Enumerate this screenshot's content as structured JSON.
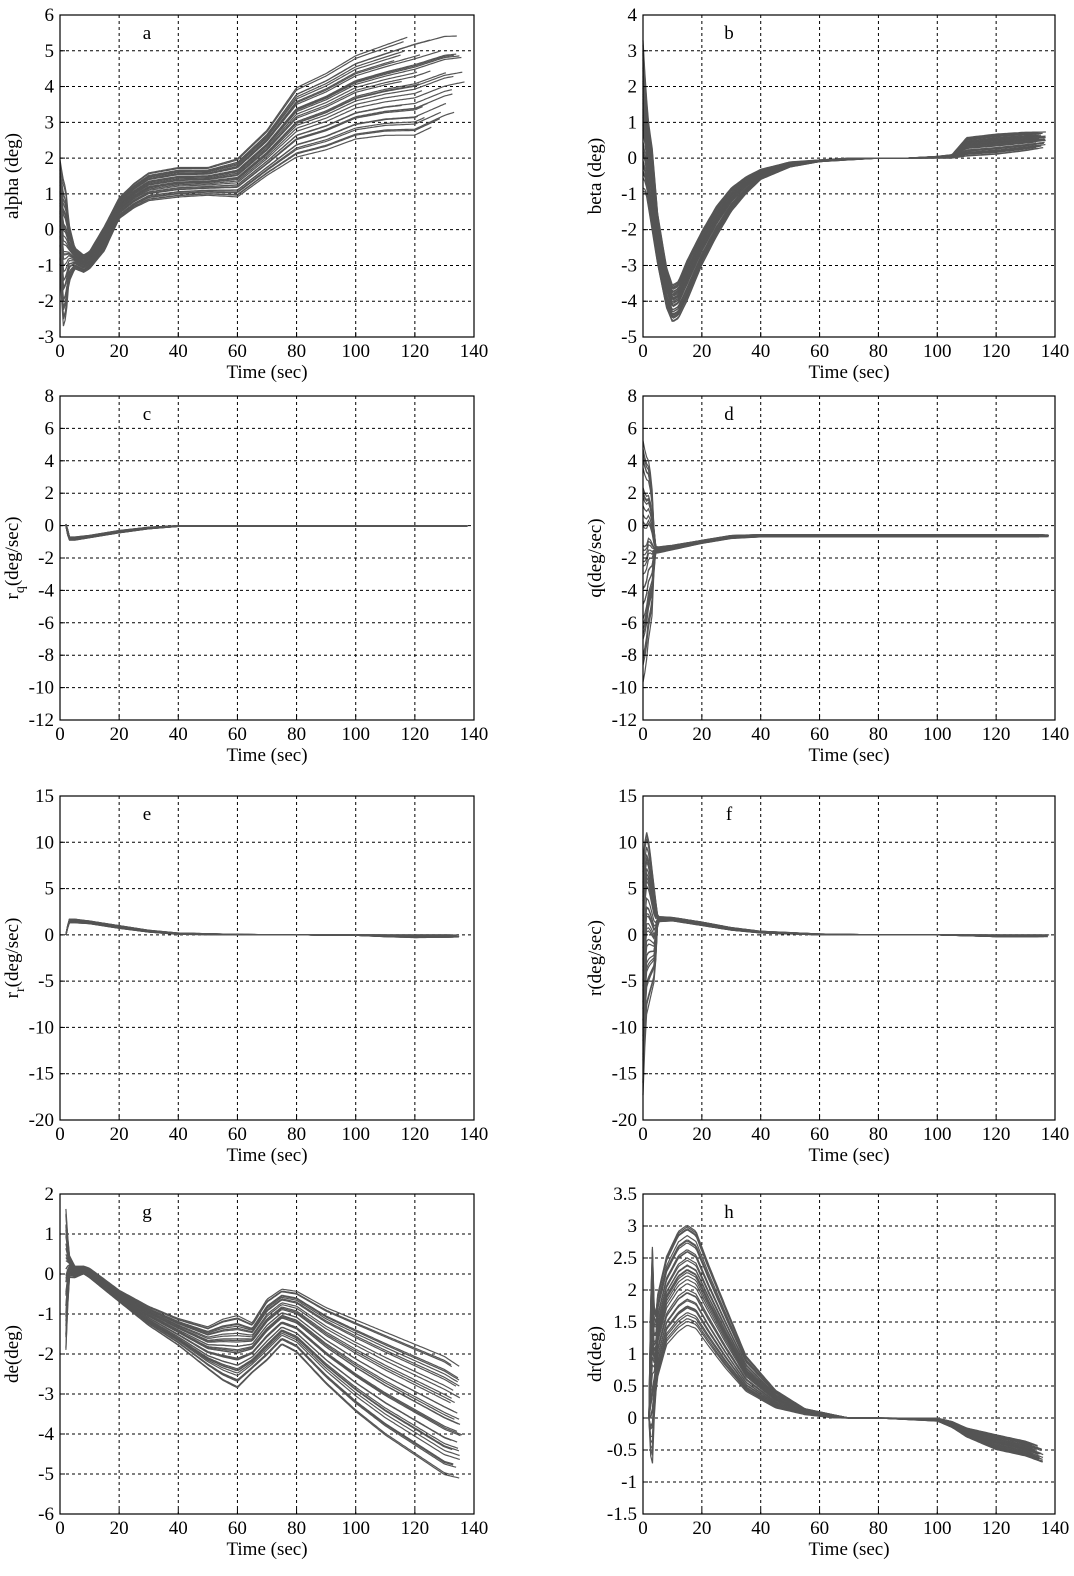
{
  "figure": {
    "layout": "4 rows x 2 columns",
    "line_color": "#555555",
    "grid": "dashed"
  },
  "chart_data": [
    {
      "panel": "a",
      "type": "line",
      "ylabel": "alpha (deg)",
      "xlabel": "Time (sec)",
      "xlim": [
        0,
        140
      ],
      "ylim": [
        -3,
        6
      ],
      "xticks": [
        "0",
        "20",
        "40",
        "60",
        "80",
        "100",
        "120",
        "140"
      ],
      "yticks": [
        "-3",
        "-2",
        "-1",
        "0",
        "1",
        "2",
        "3",
        "4",
        "5",
        "6"
      ],
      "envelope": {
        "x": [
          0,
          1,
          2,
          3,
          5,
          8,
          10,
          15,
          20,
          25,
          30,
          40,
          50,
          60,
          70,
          80,
          90,
          100,
          110,
          120,
          130,
          137
        ],
        "upper": [
          2.0,
          1.5,
          1.2,
          0.2,
          -0.5,
          -0.7,
          -0.6,
          0.1,
          0.9,
          1.3,
          1.6,
          1.75,
          1.75,
          2.0,
          2.8,
          4.0,
          4.4,
          4.9,
          5.2,
          5.5,
          5.7,
          5.7
        ],
        "lower": [
          -1.0,
          -2.8,
          -2.5,
          -1.5,
          -1.1,
          -1.2,
          -1.1,
          -0.6,
          0.3,
          0.6,
          0.8,
          0.9,
          0.95,
          0.9,
          1.5,
          2.0,
          2.2,
          2.5,
          2.6,
          2.6,
          3.0,
          3.2
        ]
      }
    },
    {
      "panel": "b",
      "type": "line",
      "ylabel": "beta (deg)",
      "xlabel": "Time (sec)",
      "xlim": [
        0,
        140
      ],
      "ylim": [
        -5,
        4
      ],
      "xticks": [
        "0",
        "20",
        "40",
        "60",
        "80",
        "100",
        "120",
        "140"
      ],
      "yticks": [
        "-5",
        "-4",
        "-3",
        "-2",
        "-1",
        "0",
        "1",
        "2",
        "3",
        "4"
      ],
      "envelope": {
        "x": [
          0,
          1,
          2,
          3,
          5,
          8,
          10,
          12,
          15,
          20,
          25,
          30,
          35,
          40,
          50,
          60,
          70,
          80,
          90,
          100,
          105,
          110,
          120,
          130,
          137
        ],
        "upper": [
          3.5,
          2.0,
          1.0,
          0.5,
          -1.5,
          -3.0,
          -3.5,
          -3.4,
          -2.8,
          -2.0,
          -1.3,
          -0.8,
          -0.5,
          -0.3,
          -0.1,
          -0.05,
          0.0,
          0.0,
          0.0,
          0.05,
          0.1,
          0.6,
          0.7,
          0.75,
          0.75
        ],
        "lower": [
          -1.0,
          -1.0,
          -1.5,
          -2.0,
          -3.0,
          -4.2,
          -4.6,
          -4.5,
          -4.0,
          -3.0,
          -2.2,
          -1.5,
          -1.0,
          -0.6,
          -0.25,
          -0.1,
          -0.05,
          0.0,
          0.0,
          0.0,
          0.0,
          0.05,
          0.1,
          0.2,
          0.3
        ]
      }
    },
    {
      "panel": "c",
      "type": "line",
      "ylabel": "r_q(deg/sec)",
      "xlabel": "Time (sec)",
      "xlim": [
        0,
        140
      ],
      "ylim": [
        -12,
        8
      ],
      "xticks": [
        "0",
        "20",
        "40",
        "60",
        "80",
        "100",
        "120",
        "140"
      ],
      "yticks": [
        "-12",
        "-10",
        "-8",
        "-6",
        "-4",
        "-2",
        "0",
        "2",
        "4",
        "6",
        "8"
      ],
      "envelope": {
        "x": [
          2,
          2.5,
          3,
          5,
          10,
          20,
          30,
          40,
          60,
          80,
          100,
          120,
          138
        ],
        "upper": [
          0.1,
          -0.1,
          -0.7,
          -0.7,
          -0.6,
          -0.3,
          -0.1,
          0.0,
          0.0,
          0.0,
          0.0,
          0.0,
          0.0
        ],
        "lower": [
          0.0,
          -0.5,
          -0.9,
          -0.9,
          -0.75,
          -0.45,
          -0.2,
          -0.05,
          -0.05,
          -0.05,
          -0.05,
          -0.05,
          -0.05
        ]
      }
    },
    {
      "panel": "d",
      "type": "line",
      "ylabel": "q(deg/sec)",
      "xlabel": "Time (sec)",
      "xlim": [
        0,
        140
      ],
      "ylim": [
        -12,
        8
      ],
      "xticks": [
        "0",
        "20",
        "40",
        "60",
        "80",
        "100",
        "120",
        "140"
      ],
      "yticks": [
        "-12",
        "-10",
        "-8",
        "-6",
        "-4",
        "-2",
        "0",
        "2",
        "4",
        "6",
        "8"
      ],
      "envelope": {
        "x": [
          0,
          1,
          2,
          3,
          4,
          5,
          10,
          20,
          30,
          40,
          60,
          80,
          100,
          120,
          138
        ],
        "upper": [
          6.0,
          5.0,
          4.5,
          3.0,
          -1.2,
          -1.3,
          -1.2,
          -0.9,
          -0.6,
          -0.55,
          -0.55,
          -0.55,
          -0.55,
          -0.55,
          -0.55
        ],
        "lower": [
          -10.0,
          -9.0,
          -7.0,
          -6.0,
          -1.7,
          -1.7,
          -1.5,
          -1.1,
          -0.8,
          -0.7,
          -0.7,
          -0.7,
          -0.7,
          -0.7,
          -0.7
        ]
      }
    },
    {
      "panel": "e",
      "type": "line",
      "ylabel": "r_r(deg/sec)",
      "xlabel": "Time (sec)",
      "xlim": [
        0,
        140
      ],
      "ylim": [
        -20,
        15
      ],
      "xticks": [
        "0",
        "20",
        "40",
        "60",
        "80",
        "100",
        "120",
        "140"
      ],
      "yticks": [
        "-20",
        "-15",
        "-10",
        "-5",
        "0",
        "5",
        "10",
        "15"
      ],
      "envelope": {
        "x": [
          2,
          3,
          5,
          10,
          20,
          30,
          40,
          60,
          80,
          100,
          110,
          120,
          135
        ],
        "upper": [
          0.0,
          1.7,
          1.7,
          1.5,
          1.0,
          0.5,
          0.2,
          0.05,
          0.0,
          0.0,
          0.0,
          0.0,
          0.0
        ],
        "lower": [
          0.0,
          1.3,
          1.3,
          1.2,
          0.7,
          0.3,
          0.05,
          0.0,
          0.0,
          -0.05,
          -0.2,
          -0.3,
          -0.25
        ]
      }
    },
    {
      "panel": "f",
      "type": "line",
      "ylabel": "r(deg/sec)",
      "xlabel": "Time (sec)",
      "xlim": [
        0,
        140
      ],
      "ylim": [
        -20,
        15
      ],
      "xticks": [
        "0",
        "20",
        "40",
        "60",
        "80",
        "100",
        "120",
        "140"
      ],
      "yticks": [
        "-20",
        "-15",
        "-10",
        "-5",
        "0",
        "5",
        "10",
        "15"
      ],
      "envelope": {
        "x": [
          0,
          1,
          2,
          3,
          4,
          5,
          10,
          20,
          30,
          40,
          60,
          80,
          100,
          110,
          120,
          138
        ],
        "upper": [
          9.0,
          12.5,
          11.0,
          8.0,
          5.0,
          2.0,
          1.9,
          1.4,
          0.8,
          0.4,
          0.1,
          0.0,
          0.0,
          0.0,
          0.0,
          0.0
        ],
        "lower": [
          -18.0,
          -9.5,
          -8.0,
          -6.5,
          -5.0,
          1.4,
          1.5,
          1.0,
          0.5,
          0.2,
          0.0,
          0.0,
          0.0,
          -0.1,
          -0.2,
          -0.2
        ]
      }
    },
    {
      "panel": "g",
      "type": "line",
      "ylabel": "de(deg)",
      "xlabel": "Time (sec)",
      "xlim": [
        0,
        140
      ],
      "ylim": [
        -6,
        2
      ],
      "xticks": [
        "0",
        "20",
        "40",
        "60",
        "80",
        "100",
        "120",
        "140"
      ],
      "yticks": [
        "-6",
        "-5",
        "-4",
        "-3",
        "-2",
        "-1",
        "0",
        "1",
        "2"
      ],
      "envelope": {
        "x": [
          2,
          3,
          5,
          8,
          10,
          20,
          30,
          40,
          50,
          55,
          60,
          65,
          70,
          75,
          80,
          90,
          100,
          110,
          120,
          130,
          136
        ],
        "upper": [
          1.7,
          0.5,
          0.2,
          0.2,
          0.15,
          -0.4,
          -0.8,
          -1.1,
          -1.3,
          -1.1,
          -1.0,
          -1.2,
          -0.6,
          -0.35,
          -0.4,
          -0.8,
          -1.1,
          -1.4,
          -1.7,
          -2.0,
          -2.3
        ],
        "lower": [
          -2.0,
          -0.1,
          -0.1,
          0.0,
          -0.1,
          -0.7,
          -1.3,
          -1.8,
          -2.4,
          -2.7,
          -2.9,
          -2.5,
          -2.2,
          -1.8,
          -2.0,
          -2.8,
          -3.5,
          -4.1,
          -4.6,
          -5.1,
          -5.2
        ]
      }
    },
    {
      "panel": "h",
      "type": "line",
      "ylabel": "dr(deg)",
      "xlabel": "Time (sec)",
      "xlim": [
        0,
        140
      ],
      "ylim": [
        -1.5,
        3.5
      ],
      "xticks": [
        "0",
        "20",
        "40",
        "60",
        "80",
        "100",
        "120",
        "140"
      ],
      "yticks": [
        "-1.5",
        "-1",
        "-0.5",
        "0",
        "0.5",
        "1",
        "1.5",
        "2",
        "2.5",
        "3",
        "3.5"
      ],
      "envelope": {
        "x": [
          2,
          3,
          4,
          5,
          8,
          12,
          15,
          18,
          22,
          28,
          35,
          45,
          55,
          65,
          70,
          80,
          100,
          105,
          110,
          120,
          130,
          136
        ],
        "upper": [
          0.0,
          3.2,
          1.5,
          2.0,
          2.6,
          3.0,
          3.1,
          3.0,
          2.5,
          1.8,
          1.0,
          0.45,
          0.15,
          0.05,
          0.0,
          0.0,
          0.0,
          -0.05,
          -0.15,
          -0.25,
          -0.35,
          -0.45
        ],
        "lower": [
          0.0,
          -1.1,
          0.2,
          0.6,
          1.1,
          1.3,
          1.4,
          1.35,
          1.1,
          0.75,
          0.4,
          0.15,
          0.05,
          0.0,
          0.0,
          0.0,
          -0.05,
          -0.15,
          -0.3,
          -0.5,
          -0.6,
          -0.7
        ]
      }
    }
  ]
}
